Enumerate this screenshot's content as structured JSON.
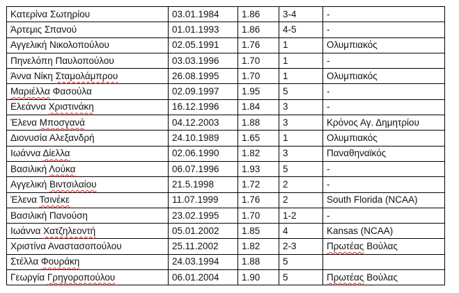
{
  "rows": [
    {
      "name": [
        {
          "t": "Κατερίνα Σωτηρίου",
          "f": false
        }
      ],
      "dob": "03.01.1984",
      "height": "1.86",
      "position": "3-4",
      "club": [
        {
          "t": "-",
          "f": false
        }
      ]
    },
    {
      "name": [
        {
          "t": "Άρτεμις Σπανού",
          "f": false
        }
      ],
      "dob": "01.01.1993",
      "height": "1.86",
      "position": "4-5",
      "club": [
        {
          "t": "-",
          "f": false
        }
      ]
    },
    {
      "name": [
        {
          "t": "Αγγελική Νικολοπούλου",
          "f": false
        }
      ],
      "dob": "02.05.1991",
      "height": "1.76",
      "position": "1",
      "club": [
        {
          "t": "Ολυμπιακός",
          "f": false
        }
      ]
    },
    {
      "name": [
        {
          "t": "Πηνελόπη Παυλοπούλου",
          "f": false
        }
      ],
      "dob": "03.03.1996",
      "height": "1.70",
      "position": "1",
      "club": [
        {
          "t": "-",
          "f": false
        }
      ]
    },
    {
      "name": [
        {
          "t": "Άννα Νίκη ",
          "f": false
        },
        {
          "t": "Σταμολάμπρου",
          "f": true
        }
      ],
      "dob": "26.08.1995",
      "height": "1.70",
      "position": "1",
      "club": [
        {
          "t": "Ολυμπιακός",
          "f": false
        }
      ]
    },
    {
      "name": [
        {
          "t": "Μαριέλλα",
          "f": true
        },
        {
          "t": " Φασούλα",
          "f": false
        }
      ],
      "dob": "02.09.1997",
      "height": "1.95",
      "position": "5",
      "club": [
        {
          "t": "-",
          "f": false
        }
      ]
    },
    {
      "name": [
        {
          "t": "Ελεάννα ",
          "f": false
        },
        {
          "t": "Χριστινάκη",
          "f": true
        }
      ],
      "dob": "16.12.1996",
      "height": "1.84",
      "position": "3",
      "club": [
        {
          "t": "-",
          "f": false
        }
      ]
    },
    {
      "name": [
        {
          "t": "Έλενα ",
          "f": false
        },
        {
          "t": "Μποσγανά",
          "f": true
        }
      ],
      "dob": "04.12.2003",
      "height": "1.88",
      "position": "3",
      "club": [
        {
          "t": "Κρόνος Αγ. Δημητρίου",
          "f": false
        }
      ]
    },
    {
      "name": [
        {
          "t": "Διονυσία Αλεξανδρή",
          "f": false
        }
      ],
      "dob": "24.10.1989",
      "height": "1.65",
      "position": "1",
      "club": [
        {
          "t": "Ολυμπιακός",
          "f": false
        }
      ]
    },
    {
      "name": [
        {
          "t": "Ιωάννα ",
          "f": false
        },
        {
          "t": "Δίελλα",
          "f": true
        }
      ],
      "dob": "02.06.1990",
      "height": "1.82",
      "position": "3",
      "club": [
        {
          "t": "Παναθηναϊκός",
          "f": false
        }
      ]
    },
    {
      "name": [
        {
          "t": "Βασιλική ",
          "f": false
        },
        {
          "t": "Λούκα",
          "f": true
        }
      ],
      "dob": "06.07.1996",
      "height": "1.93",
      "position": "5",
      "club": [
        {
          "t": "-",
          "f": false
        }
      ]
    },
    {
      "name": [
        {
          "t": "Αγγελική ",
          "f": false
        },
        {
          "t": "Βιντσιλαίου",
          "f": true
        }
      ],
      "dob": "21.5.1998",
      "height": "1.72",
      "position": "2",
      "club": [
        {
          "t": "-",
          "f": false
        }
      ]
    },
    {
      "name": [
        {
          "t": "Έλενα ",
          "f": false
        },
        {
          "t": "Τσινέκε",
          "f": true
        }
      ],
      "dob": "11.07.1999",
      "height": "1.76",
      "position": "2",
      "club": [
        {
          "t": "South Florida (NCAA)",
          "f": false
        }
      ]
    },
    {
      "name": [
        {
          "t": "Βασιλική Πανούση",
          "f": false
        }
      ],
      "dob": "23.02.1995",
      "height": "1.70",
      "position": "1-2",
      "club": [
        {
          "t": "-",
          "f": false
        }
      ]
    },
    {
      "name": [
        {
          "t": "Ιωάννα ",
          "f": false
        },
        {
          "t": "Χατζηλεοντή",
          "f": true
        }
      ],
      "dob": "05.01.2002",
      "height": "1.85",
      "position": "4",
      "club": [
        {
          "t": "Kansas (NCAA)",
          "f": false
        }
      ]
    },
    {
      "name": [
        {
          "t": "Χριστίνα Αναστασοπούλου",
          "f": false
        }
      ],
      "dob": "25.11.2002",
      "height": "1.82",
      "position": "2-3",
      "club": [
        {
          "t": "Πρωτέας",
          "f": true
        },
        {
          "t": " Βούλας",
          "f": false
        }
      ]
    },
    {
      "name": [
        {
          "t": "Στέλλα ",
          "f": false
        },
        {
          "t": "Φουράκη",
          "f": true
        }
      ],
      "dob": "24.03.1994",
      "height": "1.88",
      "position": "5",
      "club": []
    },
    {
      "name": [
        {
          "t": "Γεωργία ",
          "f": false
        },
        {
          "t": "Γρηγοροπούλου",
          "f": true
        }
      ],
      "dob": "06.01.2004",
      "height": "1.90",
      "position": "5",
      "club": [
        {
          "t": "Πρωτέας",
          "f": true
        },
        {
          "t": " Βούλας",
          "f": false
        }
      ]
    }
  ]
}
